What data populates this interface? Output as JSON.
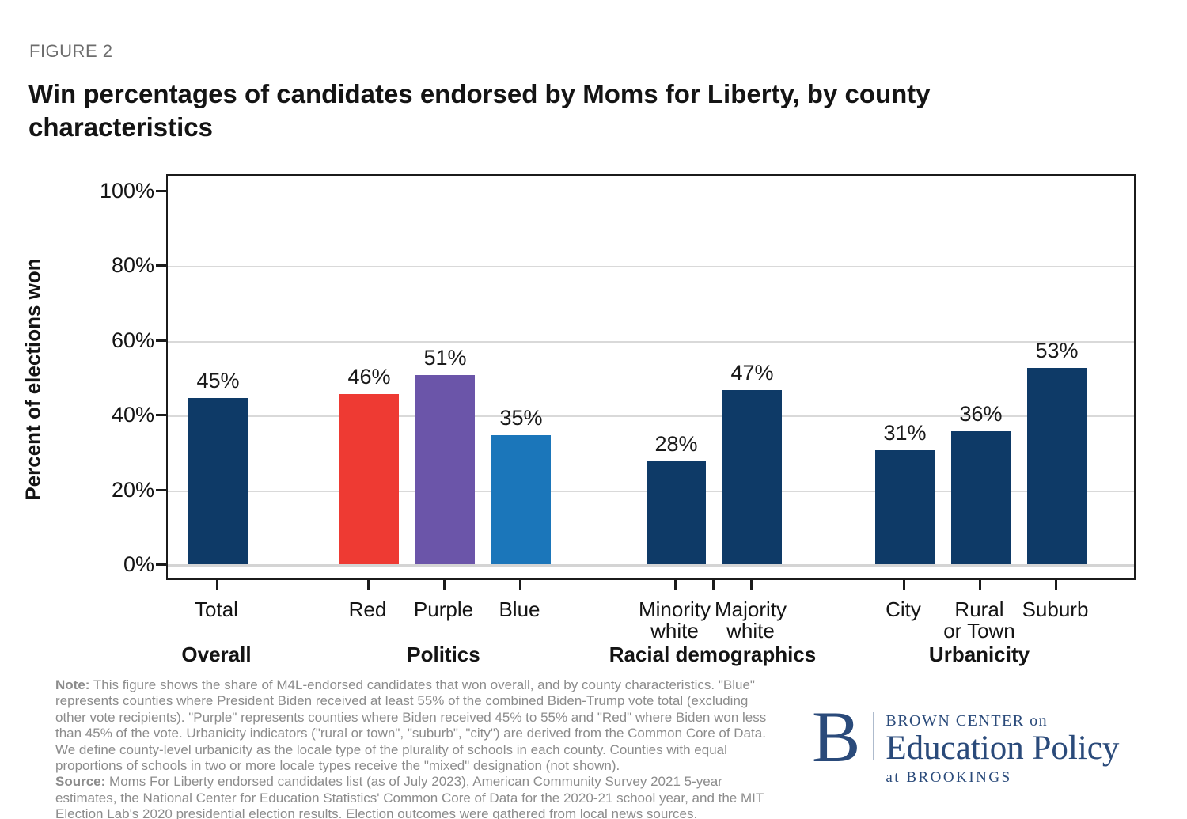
{
  "figure_label": "FIGURE 2",
  "title": "Win percentages of candidates endorsed by Moms for Liberty, by county characteristics",
  "chart_data": {
    "type": "bar",
    "title": "Win percentages of candidates endorsed by Moms for Liberty, by county characteristics",
    "xlabel": "",
    "ylabel": "Percent of elections won",
    "ylim": [
      0,
      100
    ],
    "grid": true,
    "yticks": [
      {
        "v": 0,
        "label": "0%"
      },
      {
        "v": 20,
        "label": "20%"
      },
      {
        "v": 40,
        "label": "40%"
      },
      {
        "v": 60,
        "label": "60%"
      },
      {
        "v": 80,
        "label": "80%"
      },
      {
        "v": 100,
        "label": "100%"
      }
    ],
    "groups": [
      {
        "label": "Overall",
        "bars": [
          {
            "category": "Total",
            "label_lines": [
              "Total"
            ],
            "value": 45,
            "display": "45%",
            "color": "#0e3a67"
          }
        ]
      },
      {
        "label": "Politics",
        "bars": [
          {
            "category": "Red",
            "label_lines": [
              "Red"
            ],
            "value": 46,
            "display": "46%",
            "color": "#ee3a33"
          },
          {
            "category": "Purple",
            "label_lines": [
              "Purple"
            ],
            "value": 51,
            "display": "51%",
            "color": "#6b55a9"
          },
          {
            "category": "Blue",
            "label_lines": [
              "Blue"
            ],
            "value": 35,
            "display": "35%",
            "color": "#1b76ba"
          }
        ]
      },
      {
        "label": "Racial demographics",
        "bars": [
          {
            "category": "Minority white",
            "label_lines": [
              "Minority",
              "white"
            ],
            "value": 28,
            "display": "28%",
            "color": "#0e3a67"
          },
          {
            "category": "Majority white",
            "label_lines": [
              "Majority",
              "white"
            ],
            "value": 47,
            "display": "47%",
            "color": "#0e3a67"
          }
        ]
      },
      {
        "label": "Urbanicity",
        "bars": [
          {
            "category": "City",
            "label_lines": [
              "City"
            ],
            "value": 31,
            "display": "31%",
            "color": "#0e3a67"
          },
          {
            "category": "Rural or Town",
            "label_lines": [
              "Rural",
              "or Town"
            ],
            "value": 36,
            "display": "36%",
            "color": "#0e3a67"
          },
          {
            "category": "Suburb",
            "label_lines": [
              "Suburb"
            ],
            "value": 53,
            "display": "53%",
            "color": "#0e3a67"
          }
        ]
      }
    ]
  },
  "note": {
    "label": "Note:",
    "text": "This figure shows the share of M4L-endorsed candidates that won overall, and by county characteristics. \"Blue\" represents counties where President Biden received at least 55% of the combined Biden-Trump vote total (excluding other vote recipients). \"Purple\" represents counties where Biden received 45% to 55% and \"Red\" where Biden won less than 45% of the vote. Urbanicity indicators (\"rural or town\", \"suburb\", \"city\") are derived from the Common Core of Data. We define county-level urbanicity as the locale type of the plurality of schools in each county. Counties with equal proportions of schools in two or more locale types receive the \"mixed\" designation (not shown)."
  },
  "source": {
    "label": "Source:",
    "text": "Moms For Liberty endorsed candidates list (as of July 2023), American Community Survey 2021 5-year estimates, the National Center for Education Statistics' Common Core of Data for the 2020-21 school year, and the MIT Election Lab's 2020 presidential election results. Election outcomes were gathered from local news sources."
  },
  "logo": {
    "b": "B",
    "line1": "BROWN CENTER on",
    "line2": "Education Policy",
    "line3": "at BROOKINGS"
  },
  "colors": {
    "navy": "#0e3a67",
    "red": "#ee3a33",
    "purple": "#6b55a9",
    "blue": "#1b76ba",
    "grid": "#d9d9d9",
    "axis": "#1b1b1b",
    "note_gray": "#8c8c8c",
    "logo_navy": "#2a4a7a"
  }
}
